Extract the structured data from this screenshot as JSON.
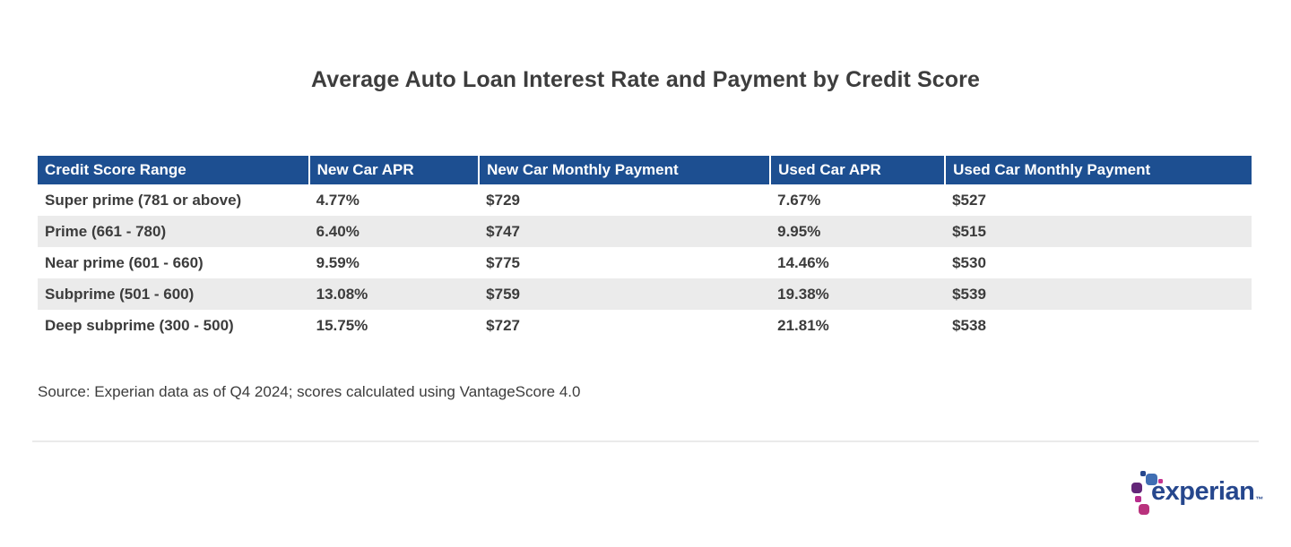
{
  "chart_data": {
    "type": "table",
    "title": "Average Auto Loan Interest Rate and Payment by Credit Score",
    "columns": [
      "Credit Score Range",
      "New Car APR",
      "New Car Monthly Payment",
      "Used Car APR",
      "Used Car Monthly Payment"
    ],
    "rows": [
      [
        "Super prime (781 or above)",
        "4.77%",
        "$729",
        "7.67%",
        "$527"
      ],
      [
        "Prime (661 - 780)",
        "6.40%",
        "$747",
        "9.95%",
        "$515"
      ],
      [
        "Near prime (601 - 660)",
        "9.59%",
        "$775",
        "14.46%",
        "$530"
      ],
      [
        "Subprime (501 - 600)",
        "13.08%",
        "$759",
        "19.38%",
        "$539"
      ],
      [
        "Deep subprime (300 - 500)",
        "15.75%",
        "$727",
        "21.81%",
        "$538"
      ]
    ],
    "source_note": "Source: Experian data as of Q4 2024; scores calculated using VantageScore 4.0",
    "layout": {
      "header_position": "top",
      "zebra_striping": true
    }
  },
  "logo": {
    "text": "experian",
    "trademark": "™"
  },
  "colors": {
    "header_bg": "#1d4f91",
    "header_text": "#ffffff",
    "row_alt_bg": "#ebebeb",
    "body_text": "#3c3c3c",
    "title_text": "#3d3d3d",
    "divider": "#eaeaea",
    "logo_wordmark_blue": "#26478d",
    "logo_square_blue": "#406eb3",
    "logo_square_purple": "#632678",
    "logo_square_magenta": "#b9327d"
  }
}
